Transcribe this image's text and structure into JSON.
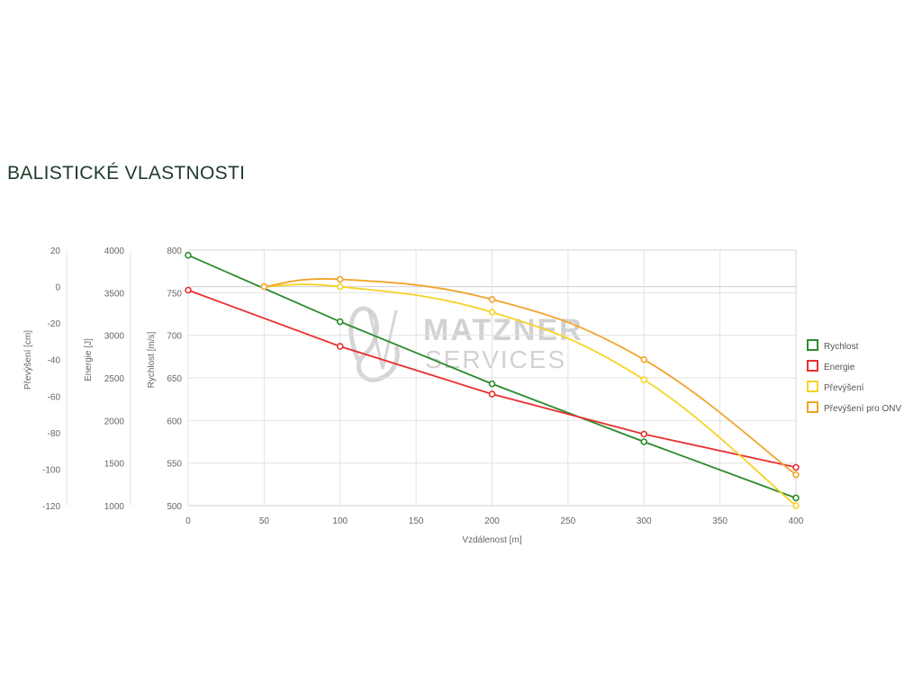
{
  "page": {
    "title": "BALISTICKÉ VLASTNOSTI"
  },
  "watermark": {
    "line1": "MATZNER",
    "line2": "SERVICES",
    "color": "#c8c8c8"
  },
  "chart_data": {
    "type": "line",
    "x_axis": {
      "label": "Vzdálenost [m]",
      "min": 0,
      "max": 400,
      "ticks": [
        0,
        50,
        100,
        150,
        200,
        250,
        300,
        350,
        400
      ]
    },
    "y_axes": [
      {
        "id": "prevyseni",
        "label": "Převýšení [cm]",
        "min": -120,
        "max": 20,
        "ticks": [
          20,
          0,
          -20,
          -40,
          -60,
          -80,
          -100,
          -120
        ]
      },
      {
        "id": "energie",
        "label": "Energie [J]",
        "min": 1000,
        "max": 4000,
        "ticks": [
          4000,
          3500,
          3000,
          2500,
          2000,
          1500,
          1000
        ]
      },
      {
        "id": "rychlost",
        "label": "Rychlost [m/s]",
        "min": 500,
        "max": 800,
        "ticks": [
          800,
          750,
          700,
          650,
          600,
          550,
          500
        ]
      }
    ],
    "grid": true,
    "legend_position": "right",
    "series": [
      {
        "name": "Rychlost",
        "color": "#2e8b2e",
        "axis": "rychlost",
        "smooth": false,
        "x": [
          0,
          100,
          200,
          300,
          400
        ],
        "y": [
          794,
          716,
          643,
          575,
          509
        ]
      },
      {
        "name": "Energie",
        "color": "#e83030",
        "axis": "energie",
        "smooth": false,
        "x": [
          0,
          100,
          200,
          300,
          400
        ],
        "y": [
          3530,
          2870,
          2310,
          1840,
          1450
        ]
      },
      {
        "name": "Převýšení",
        "color": "#f5d327",
        "axis": "prevyseni",
        "smooth": true,
        "x": [
          50,
          100,
          200,
          300,
          400
        ],
        "y": [
          0,
          0,
          -14,
          -51,
          -120
        ]
      },
      {
        "name": "Převýšení pro ONV",
        "color": "#f0a52a",
        "axis": "prevyseni",
        "smooth": true,
        "x": [
          50,
          100,
          200,
          300,
          400
        ],
        "y": [
          0,
          4,
          -7,
          -40,
          -103
        ]
      }
    ]
  }
}
